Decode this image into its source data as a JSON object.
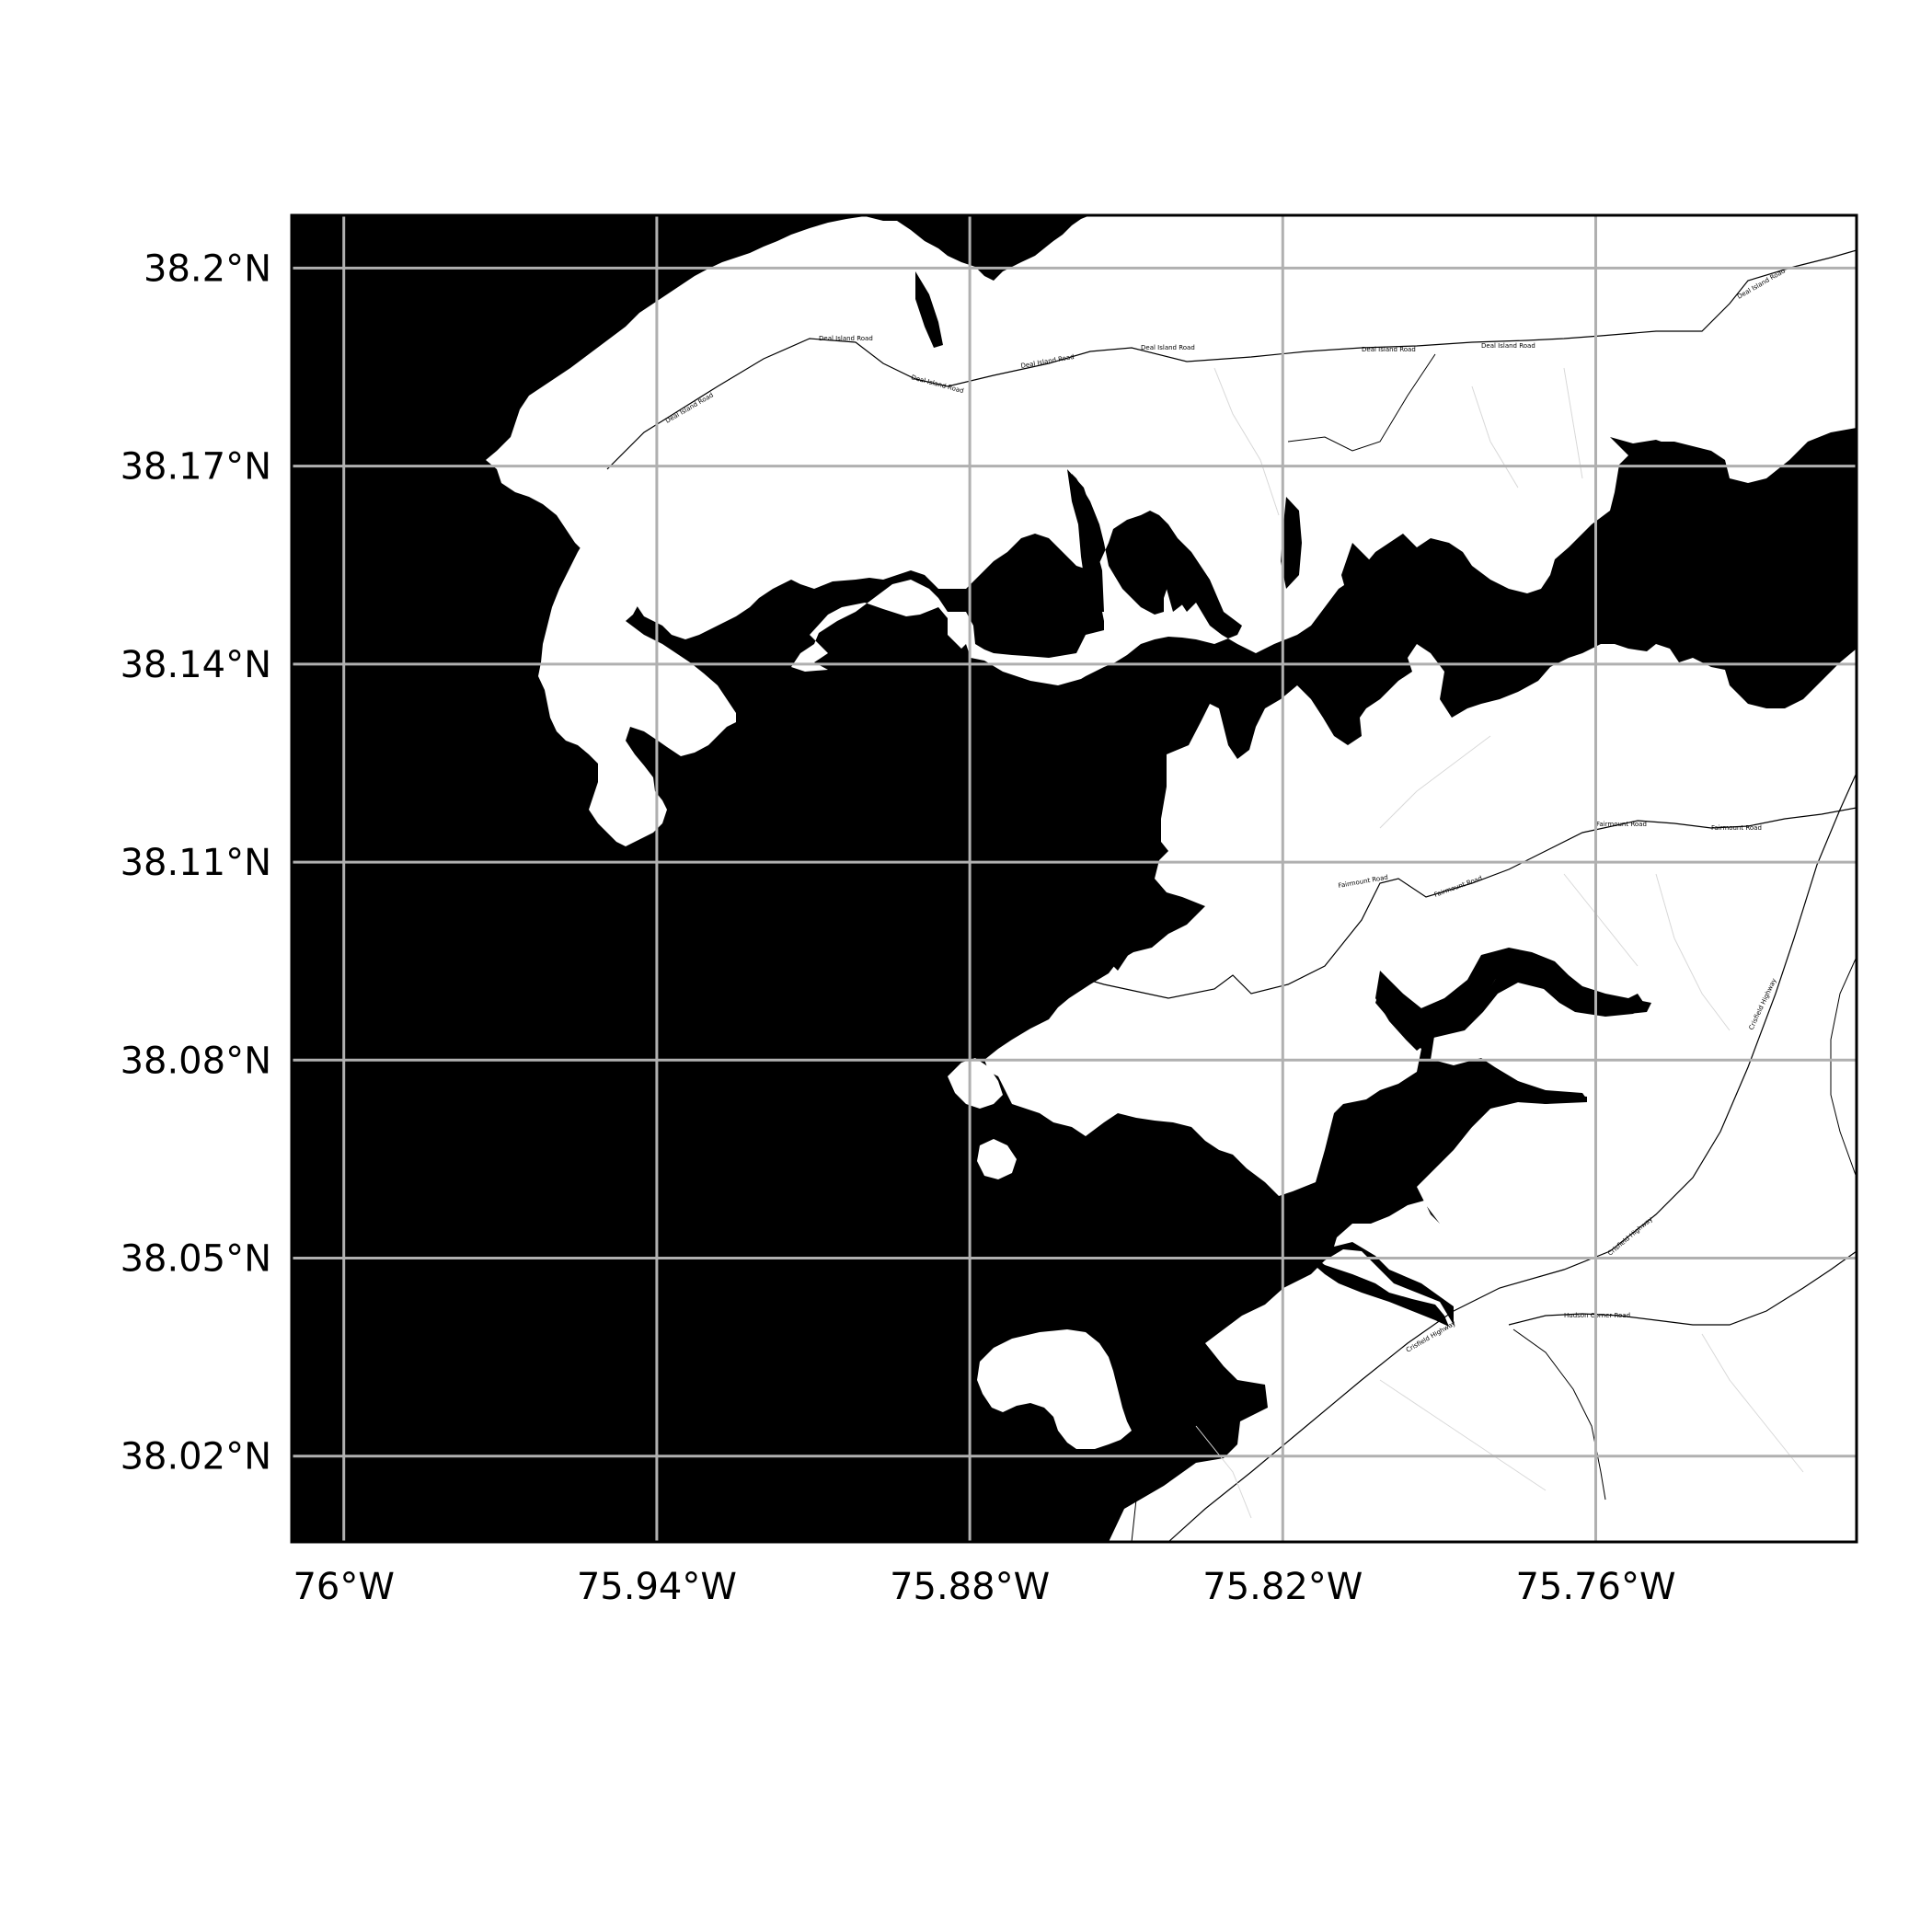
{
  "map": {
    "type": "coastline-map",
    "projection": "PlateCarree",
    "extent": {
      "lon_min": -76.01,
      "lon_max": -75.71,
      "lat_min": 38.007,
      "lat_max": 38.208
    },
    "colors": {
      "water": "#000000",
      "land": "#ffffff",
      "grid": "#b0b0b0",
      "road": "#000000",
      "minor_road": "#d8d8d8"
    },
    "gridlines": true,
    "lon_ticks": [
      {
        "value": -76.0,
        "label": "76°W"
      },
      {
        "value": -75.94,
        "label": "75.94°W"
      },
      {
        "value": -75.88,
        "label": "75.88°W"
      },
      {
        "value": -75.82,
        "label": "75.82°W"
      },
      {
        "value": -75.76,
        "label": "75.76°W"
      }
    ],
    "lat_ticks": [
      {
        "value": 38.2,
        "label": "38.2°N"
      },
      {
        "value": 38.17,
        "label": "38.17°N"
      },
      {
        "value": 38.14,
        "label": "38.14°N"
      },
      {
        "value": 38.11,
        "label": "38.11°N"
      },
      {
        "value": 38.08,
        "label": "38.08°N"
      },
      {
        "value": 38.05,
        "label": "38.05°N"
      },
      {
        "value": 38.02,
        "label": "38.02°N"
      }
    ],
    "road_labels": [
      "Deal Island Road",
      "Deal Island Road",
      "Deal Island Road",
      "Deal Island Road",
      "Deal Island Road",
      "Deal Island Road",
      "Deal Island Road",
      "Deal Island Road",
      "Fairmount Road",
      "Fairmount Road",
      "Fairmount Road",
      "Fairmount Road",
      "Crisfield Highway",
      "Crisfield Highway",
      "Crisfield Highway",
      "Hudson Corner Road"
    ]
  }
}
